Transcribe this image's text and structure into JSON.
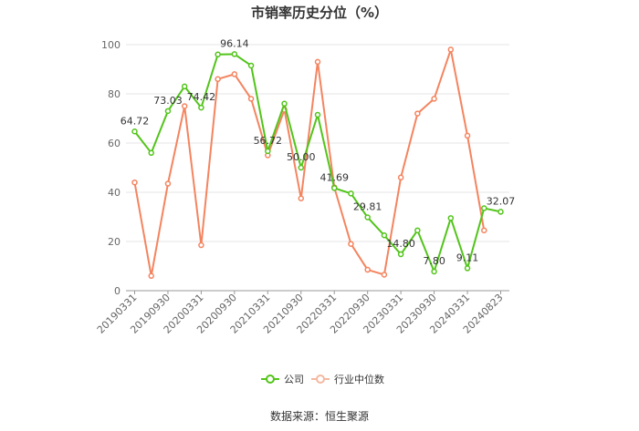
{
  "chart_data": {
    "type": "line",
    "title": "市销率历史分位（%）",
    "xlabel": "",
    "ylabel": "",
    "ylim": [
      0,
      100
    ],
    "yticks": [
      0,
      20,
      40,
      60,
      80,
      100
    ],
    "grid": true,
    "x_tick_labels": [
      "20190331",
      "20190930",
      "20200331",
      "20200930",
      "20210331",
      "20210930",
      "20220331",
      "20220930",
      "20230331",
      "20230930",
      "20240331",
      "20240823"
    ],
    "series": [
      {
        "name": "公司",
        "color": "#52c41a",
        "values": [
          64.72,
          56,
          73.03,
          83,
          74.42,
          96,
          96.14,
          91.5,
          56.72,
          76,
          50.0,
          71.5,
          41.69,
          39.5,
          29.81,
          22.5,
          14.8,
          24.5,
          7.8,
          29.5,
          9.11,
          33.5,
          32.07
        ],
        "labels": {
          "0": "64.72",
          "2": "73.03",
          "4": "74.42",
          "6": "96.14",
          "8": "56.72",
          "10": "50.00",
          "12": "41.69",
          "14": "29.81",
          "16": "14.80",
          "18": "7.80",
          "20": "9.11",
          "22": "32.07"
        }
      },
      {
        "name": "行业中位数",
        "color": "#f4845f",
        "values": [
          44,
          6,
          43.5,
          75,
          18.5,
          86,
          88,
          78,
          55,
          73.5,
          37.5,
          93,
          42,
          19,
          8.5,
          6.5,
          46,
          72,
          78,
          98,
          63,
          24.5
        ]
      }
    ],
    "legend": "bottom-center",
    "source": "数据来源：恒生聚源"
  }
}
